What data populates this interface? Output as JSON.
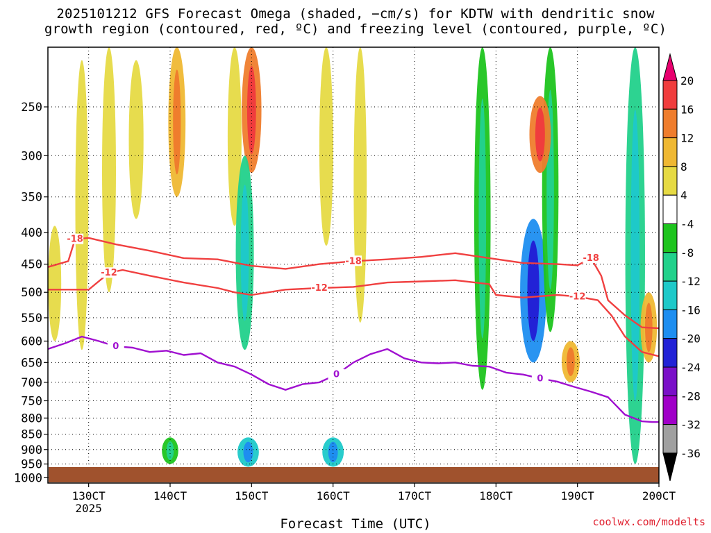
{
  "title": {
    "line1": "2025101212 GFS Forecast Omega (shaded, −cm/s) for KDTW with dendritic snow",
    "line2": "growth region (contoured, red, ºC) and freezing level (contoured, purple, ºC)"
  },
  "credit": "coolwx.com/modelts",
  "chart_data": {
    "type": "heatmap",
    "xlabel": "Forecast Time (UTC)",
    "ylabel": "",
    "x_ticks": [
      {
        "label": "130CT",
        "hour": 12,
        "sub": "2025"
      },
      {
        "label": "140CT",
        "hour": 36,
        "sub": ""
      },
      {
        "label": "150CT",
        "hour": 60,
        "sub": ""
      },
      {
        "label": "160CT",
        "hour": 84,
        "sub": ""
      },
      {
        "label": "170CT",
        "hour": 108,
        "sub": ""
      },
      {
        "label": "180CT",
        "hour": 132,
        "sub": ""
      },
      {
        "label": "190CT",
        "hour": 156,
        "sub": ""
      },
      {
        "label": "200CT",
        "hour": 180,
        "sub": ""
      }
    ],
    "xlim_hours": [
      0,
      180
    ],
    "y_ticks": [
      250,
      300,
      350,
      400,
      450,
      500,
      550,
      600,
      650,
      700,
      750,
      800,
      850,
      900,
      950,
      1000
    ],
    "ylim_hpa": [
      200,
      1020
    ],
    "grid": true,
    "colorbar": {
      "labels": [
        "20",
        "16",
        "12",
        "8",
        "4",
        "-4",
        "-8",
        "-12",
        "-16",
        "-20",
        "-24",
        "-28",
        "-32",
        "-36"
      ],
      "colors": [
        "#e8006e",
        "#f03d3d",
        "#ef7d2d",
        "#efb833",
        "#e6da44",
        "#ffffff",
        "#1ec41e",
        "#22d18b",
        "#1ec9c9",
        "#1e8ef0",
        "#2222d6",
        "#7a10c8",
        "#a000c8",
        "#a0a0a0",
        "#000000"
      ]
    },
    "series": [
      {
        "name": "",
        "color": "#f04040",
        "label": "-18",
        "x_hours": [
          0,
          6,
          8,
          12,
          20,
          30,
          40,
          50,
          60,
          70,
          80,
          90,
          100,
          110,
          120,
          130,
          140,
          150,
          156,
          160,
          163,
          165,
          170,
          175,
          180
        ],
        "y_hpa": [
          455,
          445,
          410,
          408,
          418,
          428,
          440,
          442,
          453,
          458,
          450,
          445,
          442,
          438,
          432,
          440,
          448,
          450,
          452,
          440,
          470,
          515,
          545,
          570,
          572
        ]
      },
      {
        "name": "",
        "color": "#f04040",
        "label": "-12",
        "x_hours": [
          0,
          6,
          12,
          18,
          22,
          30,
          40,
          50,
          55,
          60,
          70,
          80,
          90,
          100,
          110,
          120,
          130,
          132,
          140,
          150,
          156,
          162,
          166,
          170,
          175,
          180
        ],
        "y_hpa": [
          495,
          495,
          495,
          465,
          460,
          470,
          482,
          492,
          500,
          505,
          495,
          492,
          490,
          482,
          480,
          478,
          485,
          505,
          510,
          505,
          508,
          515,
          545,
          590,
          625,
          635
        ]
      },
      {
        "name": "",
        "color": "#a010d0",
        "label": "0",
        "x_hours": [
          0,
          5,
          10,
          15,
          20,
          25,
          30,
          35,
          40,
          45,
          50,
          55,
          60,
          65,
          70,
          75,
          80,
          85,
          90,
          95,
          100,
          105,
          110,
          115,
          120,
          125,
          130,
          135,
          140,
          145,
          150,
          155,
          160,
          165,
          170,
          175,
          178,
          180
        ],
        "y_hpa": [
          618,
          605,
          590,
          600,
          612,
          615,
          625,
          622,
          632,
          628,
          650,
          660,
          680,
          705,
          720,
          705,
          700,
          680,
          650,
          630,
          618,
          640,
          650,
          652,
          650,
          658,
          660,
          675,
          680,
          690,
          698,
          712,
          725,
          740,
          790,
          810,
          812,
          812
        ]
      }
    ],
    "omega_blobs": [
      {
        "hour": 2,
        "hpa_top": 390,
        "hpa_bot": 600,
        "value": 4
      },
      {
        "hour": 10,
        "hpa_top": 210,
        "hpa_bot": 620,
        "value": 4
      },
      {
        "hour": 18,
        "hpa_top": 200,
        "hpa_bot": 500,
        "value": 5
      },
      {
        "hour": 26,
        "hpa_top": 210,
        "hpa_bot": 380,
        "value": 6
      },
      {
        "hour": 38,
        "hpa_top": 200,
        "hpa_bot": 350,
        "value": 9
      },
      {
        "hour": 36,
        "hpa_top": 860,
        "hpa_bot": 950,
        "value": -8
      },
      {
        "hour": 55,
        "hpa_top": 200,
        "hpa_bot": 390,
        "value": 5
      },
      {
        "hour": 60,
        "hpa_top": 200,
        "hpa_bot": 320,
        "value": 12
      },
      {
        "hour": 58,
        "hpa_top": 300,
        "hpa_bot": 620,
        "value": -10
      },
      {
        "hour": 59,
        "hpa_top": 860,
        "hpa_bot": 960,
        "value": -14
      },
      {
        "hour": 82,
        "hpa_top": 200,
        "hpa_bot": 420,
        "value": 5
      },
      {
        "hour": 84,
        "hpa_top": 860,
        "hpa_bot": 960,
        "value": -14
      },
      {
        "hour": 92,
        "hpa_top": 200,
        "hpa_bot": 560,
        "value": 4
      },
      {
        "hour": 128,
        "hpa_top": 200,
        "hpa_bot": 720,
        "value": -8
      },
      {
        "hour": 143,
        "hpa_top": 380,
        "hpa_bot": 650,
        "value": -20
      },
      {
        "hour": 148,
        "hpa_top": 200,
        "hpa_bot": 580,
        "value": -8
      },
      {
        "hour": 145,
        "hpa_top": 240,
        "hpa_bot": 320,
        "value": 14
      },
      {
        "hour": 154,
        "hpa_top": 600,
        "hpa_bot": 700,
        "value": 10
      },
      {
        "hour": 173,
        "hpa_top": 200,
        "hpa_bot": 950,
        "value": -12
      },
      {
        "hour": 177,
        "hpa_top": 500,
        "hpa_bot": 650,
        "value": 8
      }
    ]
  }
}
